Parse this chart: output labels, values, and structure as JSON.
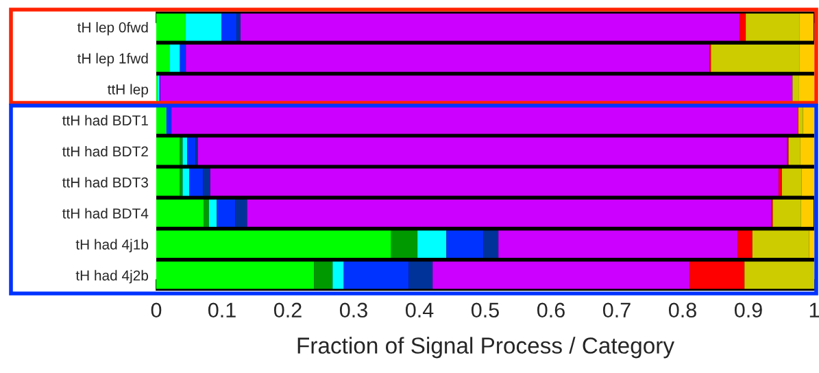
{
  "chart_data": {
    "type": "bar",
    "orientation": "horizontal",
    "stacked": true,
    "categories": [
      "tH lep 0fwd",
      "tH lep 1fwd",
      "ttH lep",
      "ttH had BDT1",
      "ttH had BDT2",
      "ttH had BDT3",
      "ttH had BDT4",
      "tH had 4j1b",
      "tH had 4j2b"
    ],
    "series": [
      {
        "color": "#00ff00",
        "values": [
          0.044,
          0.02,
          0.002,
          0.015,
          0.036,
          0.036,
          0.072,
          0.357,
          0.24
        ]
      },
      {
        "color": "#009900",
        "values": [
          0.0,
          0.0,
          0.0,
          0.0,
          0.004,
          0.004,
          0.008,
          0.04,
          0.028
        ]
      },
      {
        "color": "#00ffff",
        "values": [
          0.055,
          0.016,
          0.003,
          0.001,
          0.007,
          0.01,
          0.012,
          0.044,
          0.017
        ]
      },
      {
        "color": "#0033ff",
        "values": [
          0.023,
          0.009,
          0.001,
          0.007,
          0.013,
          0.021,
          0.028,
          0.056,
          0.099
        ]
      },
      {
        "color": "#003399",
        "values": [
          0.006,
          0.0,
          0.0,
          0.0,
          0.003,
          0.011,
          0.018,
          0.023,
          0.036
        ]
      },
      {
        "color": "#cc00ff",
        "values": [
          0.759,
          0.796,
          0.961,
          0.952,
          0.896,
          0.864,
          0.797,
          0.364,
          0.391
        ]
      },
      {
        "color": "#ff0000",
        "values": [
          0.009,
          0.002,
          0.0,
          0.001,
          0.002,
          0.005,
          0.002,
          0.022,
          0.083
        ]
      },
      {
        "color": "#cccc00",
        "values": [
          0.082,
          0.135,
          0.01,
          0.007,
          0.018,
          0.03,
          0.043,
          0.086,
          0.106
        ]
      },
      {
        "color": "#ffcc00",
        "values": [
          0.021,
          0.022,
          0.023,
          0.017,
          0.021,
          0.019,
          0.019,
          0.008,
          0.0
        ]
      }
    ],
    "xlim": [
      0,
      1
    ],
    "xticks": [
      0,
      0.1,
      0.2,
      0.3,
      0.4,
      0.5,
      0.6,
      0.7,
      0.8,
      0.9,
      1
    ],
    "xlabel": "Fraction of Signal Process / Category",
    "grid": false
  }
}
